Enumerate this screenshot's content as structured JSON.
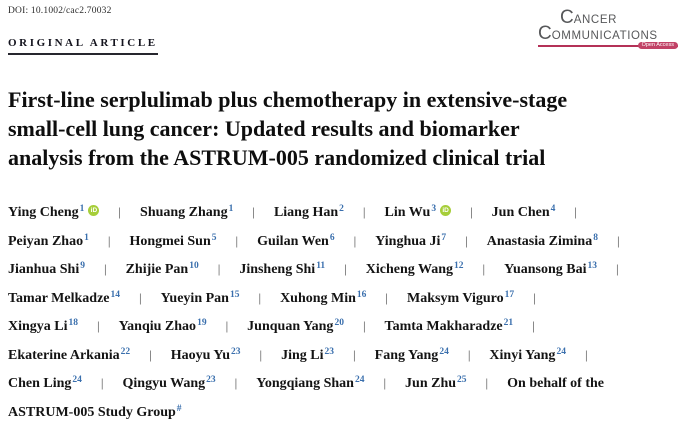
{
  "header": {
    "doi": "DOI: 10.1002/cac2.70032",
    "article_type": "ORIGINAL ARTICLE"
  },
  "journal_logo": {
    "line1_initial": "C",
    "line1_rest": "ANCER",
    "line2_initial": "C",
    "line2_rest": "OMMUNICATIONS",
    "badge": "Open Access",
    "text_color": "#57585a",
    "accent_color": "#b43157"
  },
  "title_lines": [
    "First-line serplulimab plus chemotherapy in extensive-stage",
    "small-cell lung cancer: Updated results and biomarker",
    "analysis from the ASTRUM-005 randomized clinical trial"
  ],
  "colors": {
    "superscript_blue": "#3a6fad",
    "orcid_green": "#a6ce39",
    "separator_gray": "#4d4d4d"
  },
  "author_rows": [
    [
      {
        "name": "Ying Cheng",
        "sup": "1",
        "orcid": true,
        "sep_after": true
      },
      {
        "name": "Shuang Zhang",
        "sup": "1",
        "orcid": false,
        "sep_after": true
      },
      {
        "name": "Liang Han",
        "sup": "2",
        "orcid": false,
        "sep_after": true
      },
      {
        "name": "Lin Wu",
        "sup": "3",
        "orcid": true,
        "sep_after": true
      },
      {
        "name": "Jun Chen",
        "sup": "4",
        "orcid": false,
        "sep_after": true
      }
    ],
    [
      {
        "name": "Peiyan Zhao",
        "sup": "1",
        "orcid": false,
        "sep_after": true
      },
      {
        "name": "Hongmei Sun",
        "sup": "5",
        "orcid": false,
        "sep_after": true
      },
      {
        "name": "Guilan Wen",
        "sup": "6",
        "orcid": false,
        "sep_after": true
      },
      {
        "name": "Yinghua Ji",
        "sup": "7",
        "orcid": false,
        "sep_after": true
      },
      {
        "name": "Anastasia Zimina",
        "sup": "8",
        "orcid": false,
        "sep_after": true
      }
    ],
    [
      {
        "name": "Jianhua Shi",
        "sup": "9",
        "orcid": false,
        "sep_after": true
      },
      {
        "name": "Zhijie Pan",
        "sup": "10",
        "orcid": false,
        "sep_after": true
      },
      {
        "name": "Jinsheng Shi",
        "sup": "11",
        "orcid": false,
        "sep_after": true
      },
      {
        "name": "Xicheng Wang",
        "sup": "12",
        "orcid": false,
        "sep_after": true
      },
      {
        "name": "Yuansong Bai",
        "sup": "13",
        "orcid": false,
        "sep_after": true
      }
    ],
    [
      {
        "name": "Tamar Melkadze",
        "sup": "14",
        "orcid": false,
        "sep_after": true
      },
      {
        "name": "Yueyin Pan",
        "sup": "15",
        "orcid": false,
        "sep_after": true
      },
      {
        "name": "Xuhong Min",
        "sup": "16",
        "orcid": false,
        "sep_after": true
      },
      {
        "name": "Maksym Viguro",
        "sup": "17",
        "orcid": false,
        "sep_after": true
      }
    ],
    [
      {
        "name": "Xingya Li",
        "sup": "18",
        "orcid": false,
        "sep_after": true
      },
      {
        "name": "Yanqiu Zhao",
        "sup": "19",
        "orcid": false,
        "sep_after": true
      },
      {
        "name": "Junquan Yang",
        "sup": "20",
        "orcid": false,
        "sep_after": true
      },
      {
        "name": "Tamta Makharadze",
        "sup": "21",
        "orcid": false,
        "sep_after": true
      }
    ],
    [
      {
        "name": "Ekaterine Arkania",
        "sup": "22",
        "orcid": false,
        "sep_after": true
      },
      {
        "name": "Haoyu Yu",
        "sup": "23",
        "orcid": false,
        "sep_after": true
      },
      {
        "name": "Jing Li",
        "sup": "23",
        "orcid": false,
        "sep_after": true
      },
      {
        "name": "Fang Yang",
        "sup": "24",
        "orcid": false,
        "sep_after": true
      },
      {
        "name": "Xinyi Yang",
        "sup": "24",
        "orcid": false,
        "sep_after": true
      }
    ],
    [
      {
        "name": "Chen Ling",
        "sup": "24",
        "orcid": false,
        "sep_after": true
      },
      {
        "name": "Qingyu Wang",
        "sup": "23",
        "orcid": false,
        "sep_after": true
      },
      {
        "name": "Yongqiang Shan",
        "sup": "24",
        "orcid": false,
        "sep_after": true
      },
      {
        "name": "Jun Zhu",
        "sup": "25",
        "orcid": false,
        "sep_after": true
      },
      {
        "name": "On behalf of the",
        "sup": "",
        "orcid": false,
        "sep_after": false
      }
    ],
    [
      {
        "name": "ASTRUM-005 Study Group",
        "sup": "#",
        "orcid": false,
        "sep_after": false
      }
    ]
  ]
}
